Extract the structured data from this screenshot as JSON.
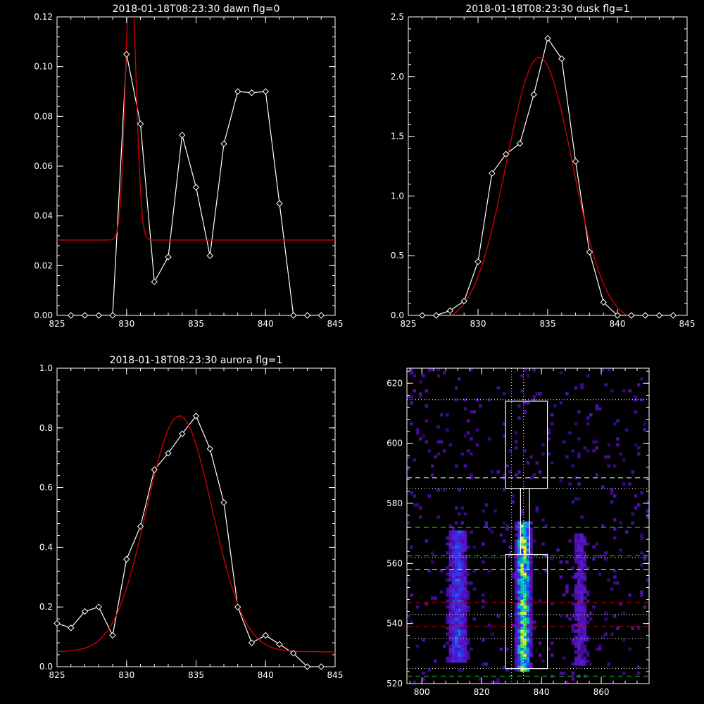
{
  "colors": {
    "background": "#000000",
    "axes": "#ffffff",
    "data": "#ffffff",
    "fit": "#cc0000",
    "green_line": "#22cc22",
    "red_line": "#cc0000"
  },
  "chart_data": [
    {
      "type": "line",
      "title": "2018-01-18T08:23:30 dawn flg=0",
      "xlim": [
        825,
        845
      ],
      "ylim": [
        0,
        0.12
      ],
      "xticks": [
        825,
        830,
        835,
        840,
        845
      ],
      "xtick_labels": [
        "825",
        "830",
        "835",
        "840",
        "845"
      ],
      "yticks": [
        0,
        0.02,
        0.04,
        0.06,
        0.08,
        0.1,
        0.12
      ],
      "ytick_labels": [
        "0.00",
        "0.02",
        "0.04",
        "0.06",
        "0.08",
        "0.10",
        "0.12"
      ],
      "data": {
        "x": [
          826,
          827,
          828,
          829,
          830,
          831,
          832,
          833,
          834,
          835,
          836,
          837,
          838,
          839,
          840,
          841,
          842,
          843,
          844
        ],
        "y": [
          0,
          0,
          0,
          0,
          0.105,
          0.077,
          0.0135,
          0.0235,
          0.0725,
          0.0515,
          0.024,
          0.069,
          0.09,
          0.0895,
          0.09,
          0.045,
          0,
          0,
          0
        ]
      },
      "fit": {
        "model": "gaussian",
        "baseline": 0.0303,
        "amplitude": 0.108,
        "center": 830.3,
        "sigma": 0.38
      }
    },
    {
      "type": "line",
      "title": "2018-01-18T08:23:30 dusk flg=1",
      "xlim": [
        825,
        845
      ],
      "ylim": [
        0,
        2.5
      ],
      "xticks": [
        825,
        830,
        835,
        840,
        845
      ],
      "xtick_labels": [
        "825",
        "830",
        "835",
        "840",
        "845"
      ],
      "yticks": [
        0,
        0.5,
        1.0,
        1.5,
        2.0,
        2.5
      ],
      "ytick_labels": [
        "0.0",
        "0.5",
        "1.0",
        "1.5",
        "2.0",
        "2.5"
      ],
      "data": {
        "x": [
          826,
          827,
          828,
          829,
          830,
          831,
          832,
          833,
          834,
          835,
          836,
          837,
          838,
          839,
          840,
          841,
          842,
          843,
          844
        ],
        "y": [
          0,
          0,
          0.04,
          0.12,
          0.45,
          1.19,
          1.35,
          1.44,
          1.85,
          2.32,
          2.15,
          1.29,
          0.53,
          0.11,
          0,
          0,
          0,
          0,
          0
        ]
      },
      "fit": {
        "model": "gaussian",
        "baseline": -0.06,
        "amplitude": 2.22,
        "center": 834.4,
        "sigma": 2.35
      }
    },
    {
      "type": "line",
      "title": "2018-01-18T08:23:30 aurora flg=1",
      "xlim": [
        825,
        845
      ],
      "ylim": [
        0,
        1.0
      ],
      "xticks": [
        825,
        830,
        835,
        840,
        845
      ],
      "xtick_labels": [
        "825",
        "830",
        "835",
        "840",
        "845"
      ],
      "yticks": [
        0,
        0.2,
        0.4,
        0.6,
        0.8,
        1.0
      ],
      "ytick_labels": [
        "0.0",
        "0.2",
        "0.4",
        "0.6",
        "0.8",
        "1.0"
      ],
      "data": {
        "x": [
          825,
          826,
          827,
          828,
          829,
          830,
          831,
          832,
          833,
          834,
          835,
          836,
          837,
          838,
          839,
          840,
          841,
          842,
          843,
          844
        ],
        "y": [
          0.145,
          0.13,
          0.185,
          0.2,
          0.105,
          0.36,
          0.47,
          0.66,
          0.715,
          0.78,
          0.84,
          0.73,
          0.55,
          0.2,
          0.08,
          0.105,
          0.075,
          0.045,
          0,
          0
        ]
      },
      "fit": {
        "model": "gaussian",
        "baseline": 0.05,
        "amplitude": 0.79,
        "center": 833.8,
        "sigma": 2.35
      }
    },
    {
      "type": "heatmap",
      "title": "",
      "xlim": [
        795,
        876
      ],
      "ylim": [
        520,
        625
      ],
      "xticks": [
        800,
        820,
        840,
        860
      ],
      "xtick_labels": [
        "800",
        "820",
        "840",
        "860"
      ],
      "yticks": [
        520,
        540,
        560,
        580,
        600,
        620
      ],
      "ytick_labels": [
        "520",
        "540",
        "560",
        "580",
        "600",
        "620"
      ],
      "bands": [
        {
          "name": "left",
          "x_center": 812,
          "x_width": 6,
          "y_range": [
            527,
            571
          ],
          "strength": 0.45
        },
        {
          "name": "center",
          "x_center": 834,
          "x_width": 4,
          "y_range": [
            524,
            574
          ],
          "strength": 1.0
        },
        {
          "name": "right",
          "x_center": 853,
          "x_width": 5,
          "y_range": [
            526,
            570
          ],
          "strength": 0.28
        }
      ],
      "boxes": [
        {
          "x": [
            828,
            842
          ],
          "y": [
            585,
            614
          ]
        },
        {
          "x": [
            828,
            842
          ],
          "y": [
            525,
            563
          ]
        },
        {
          "x": [
            833,
            836
          ],
          "y": [
            563,
            585
          ]
        }
      ],
      "vlines_dotted": [
        830,
        834
      ],
      "hlines": [
        {
          "y": 614.5,
          "style": "dotted",
          "color": "white"
        },
        {
          "y": 588.5,
          "style": "dashed",
          "color": "white"
        },
        {
          "y": 585,
          "style": "dotted",
          "color": "white"
        },
        {
          "y": 572,
          "style": "dashed",
          "color": "green"
        },
        {
          "y": 562.5,
          "style": "dashed",
          "color": "green"
        },
        {
          "y": 562,
          "style": "dotted",
          "color": "white"
        },
        {
          "y": 558,
          "style": "dashed",
          "color": "white"
        },
        {
          "y": 547,
          "style": "dashed",
          "color": "red"
        },
        {
          "y": 543,
          "style": "dotted",
          "color": "white"
        },
        {
          "y": 539,
          "style": "dashed",
          "color": "red"
        },
        {
          "y": 535,
          "style": "dotted",
          "color": "white"
        },
        {
          "y": 525,
          "style": "dotted",
          "color": "white"
        },
        {
          "y": 522.5,
          "style": "dashed",
          "color": "green"
        }
      ]
    }
  ]
}
